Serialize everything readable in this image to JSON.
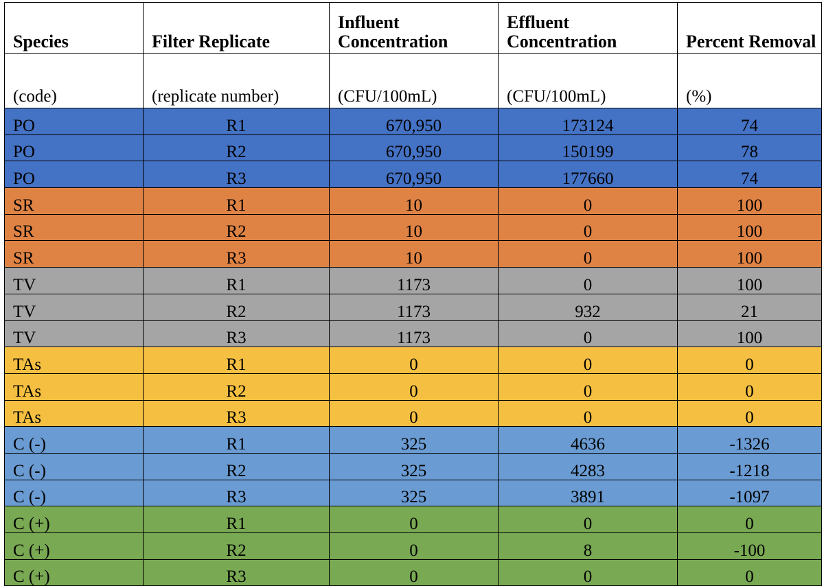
{
  "table": {
    "headers": [
      "Species",
      "Filter Replicate",
      "Influent Concentration",
      "Effluent Concentration",
      "Percent Removal"
    ],
    "units": [
      "(code)",
      "(replicate number)",
      "(CFU/100mL)",
      "(CFU/100mL)",
      "(%)"
    ],
    "rows": [
      [
        "PO",
        "R1",
        "670,950",
        "173124",
        "74"
      ],
      [
        "PO",
        "R2",
        "670,950",
        "150199",
        "78"
      ],
      [
        "PO",
        "R3",
        "670,950",
        "177660",
        "74"
      ],
      [
        "SR",
        "R1",
        "10",
        "0",
        "100"
      ],
      [
        "SR",
        "R2",
        "10",
        "0",
        "100"
      ],
      [
        "SR",
        "R3",
        "10",
        "0",
        "100"
      ],
      [
        "TV",
        "R1",
        "1173",
        "0",
        "100"
      ],
      [
        "TV",
        "R2",
        "1173",
        "932",
        "21"
      ],
      [
        "TV",
        "R3",
        "1173",
        "0",
        "100"
      ],
      [
        "TAs",
        "R1",
        "0",
        "0",
        "0"
      ],
      [
        "TAs",
        "R2",
        "0",
        "0",
        "0"
      ],
      [
        "TAs",
        "R3",
        "0",
        "0",
        "0"
      ],
      [
        "C (-)",
        "R1",
        "325",
        "4636",
        "-1326"
      ],
      [
        "C (-)",
        "R2",
        "325",
        "4283",
        "-1218"
      ],
      [
        "C (-)",
        "R3",
        "325",
        "3891",
        "-1097"
      ],
      [
        "C (+)",
        "R1",
        "0",
        "0",
        "0"
      ],
      [
        "C (+)",
        "R2",
        "0",
        "8",
        "-100"
      ],
      [
        "C (+)",
        "R3",
        "0",
        "0",
        "0"
      ]
    ],
    "row_colors": {
      "PO": "#4472c4",
      "SR": "#df8345",
      "TV": "#a5a5a5",
      "TAs": "#f5c042",
      "C (-)": "#6a9bd2",
      "C (+)": "#79a953"
    }
  }
}
